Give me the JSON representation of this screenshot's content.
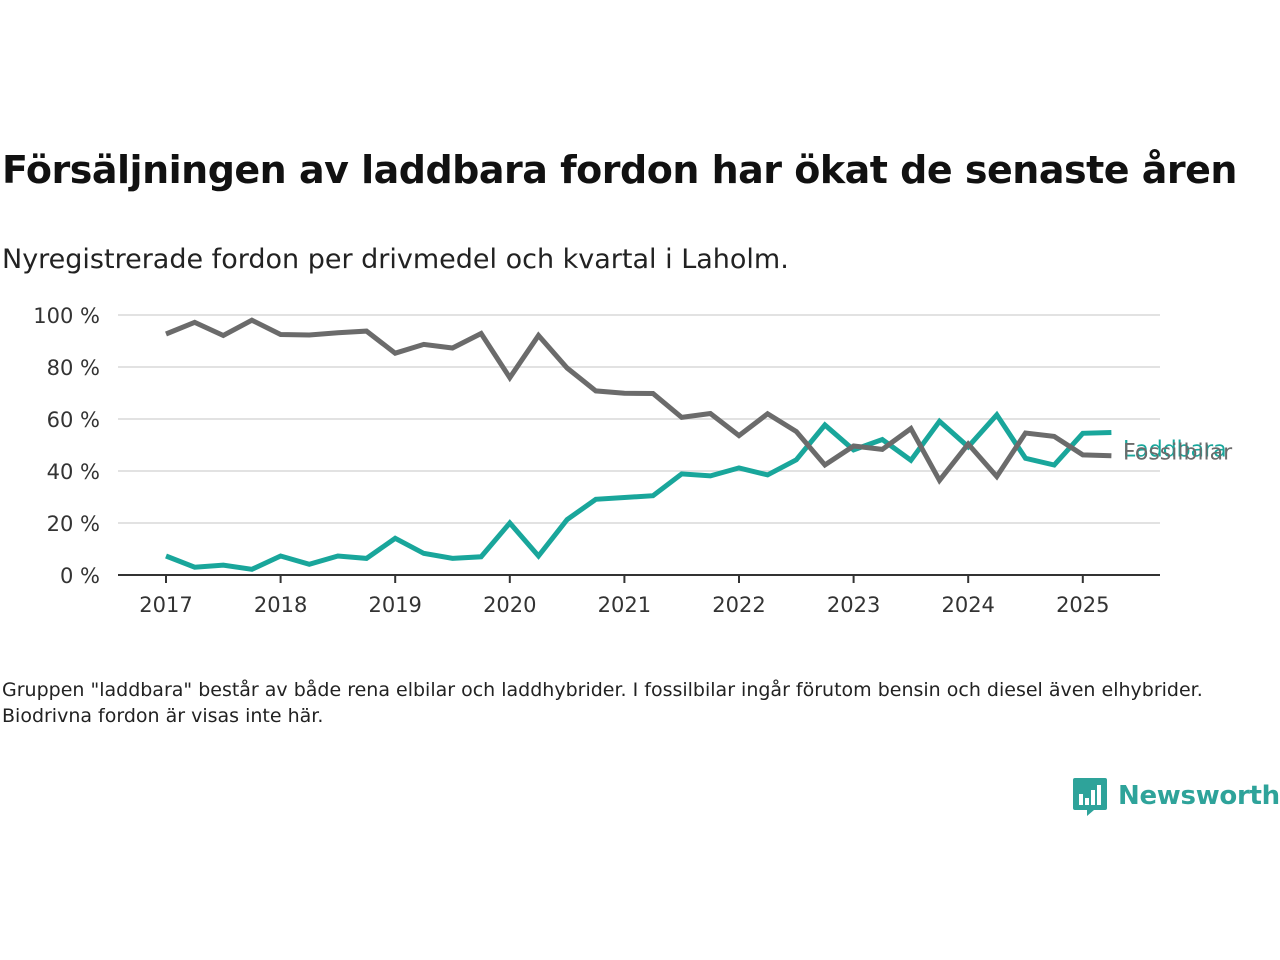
{
  "title": "Försäljningen av laddbara fordon har ökat de senaste åren",
  "subtitle": "Nyregistrerade fordon per drivmedel och kvartal i Laholm.",
  "note": "Gruppen \"laddbara\" består av både rena elbilar och laddhybrider. I fossilbilar ingår förutom bensin och diesel även elhybrider. Biodrivna fordon är visas inte här.",
  "brand": {
    "name": "Newsworthy",
    "icon": "newsworthy-logo-icon",
    "color": "#2ea39a"
  },
  "chart_data": {
    "type": "line",
    "ylim": [
      0,
      100
    ],
    "y_ticks": [
      0,
      20,
      40,
      60,
      80,
      100
    ],
    "y_tick_labels": [
      "0 %",
      "20 %",
      "40 %",
      "60 %",
      "80 %",
      "100 %"
    ],
    "x_ticks": [
      2017,
      2018,
      2019,
      2020,
      2021,
      2022,
      2023,
      2024,
      2025
    ],
    "x_tick_labels": [
      "2017",
      "2018",
      "2019",
      "2020",
      "2021",
      "2022",
      "2023",
      "2024",
      "2025"
    ],
    "x": [
      2017.0,
      2017.25,
      2017.5,
      2017.75,
      2018.0,
      2018.25,
      2018.5,
      2018.75,
      2019.0,
      2019.25,
      2019.5,
      2019.75,
      2020.0,
      2020.25,
      2020.5,
      2020.75,
      2021.0,
      2021.25,
      2021.5,
      2021.75,
      2022.0,
      2022.25,
      2022.5,
      2022.75,
      2023.0,
      2023.25,
      2023.5,
      2023.75,
      2024.0,
      2024.25,
      2024.5,
      2024.75,
      2025.0,
      2025.25
    ],
    "grid": true,
    "legend": "direct labels at line ends",
    "series": [
      {
        "name": "Fossilbilar",
        "color": "#6b6b6b",
        "values": [
          92.7,
          97.2,
          92.1,
          98.0,
          92.5,
          92.3,
          93.2,
          93.8,
          85.3,
          88.7,
          87.3,
          92.9,
          75.9,
          92.1,
          79.6,
          70.8,
          69.9,
          69.8,
          60.6,
          62.1,
          53.6,
          62.0,
          55.2,
          42.3,
          49.6,
          48.3,
          56.3,
          36.4,
          50.4,
          37.9,
          54.6,
          53.3,
          46.2,
          45.9
        ]
      },
      {
        "name": "Laddbara",
        "color": "#19a69b",
        "values": [
          7.3,
          3.0,
          3.8,
          2.2,
          7.3,
          4.1,
          7.3,
          6.4,
          14.1,
          8.3,
          6.4,
          7.0,
          20.0,
          7.3,
          21.3,
          29.1,
          29.8,
          30.5,
          38.9,
          38.1,
          41.2,
          38.5,
          44.3,
          57.7,
          48.1,
          52.1,
          44.1,
          59.1,
          49.3,
          61.6,
          44.9,
          42.3,
          54.5,
          54.8
        ]
      }
    ]
  }
}
